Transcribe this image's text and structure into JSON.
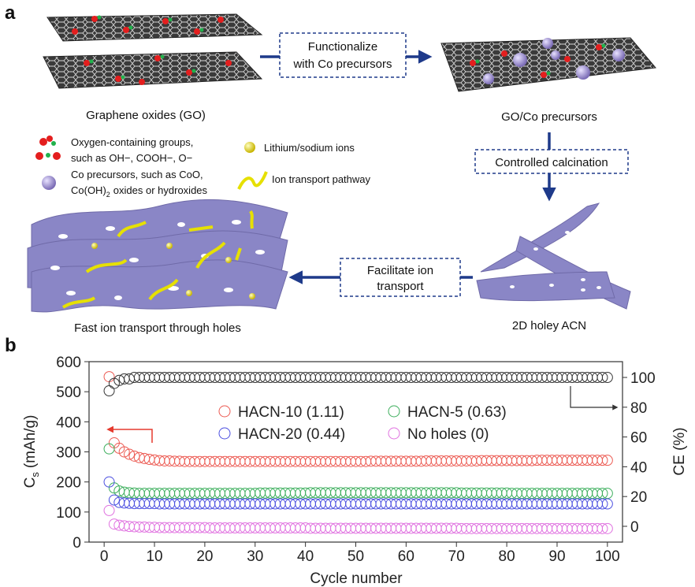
{
  "panels": {
    "a": "a",
    "b": "b"
  },
  "diagram": {
    "functionalize_box": [
      "Functionalize",
      "with Co precursors"
    ],
    "go_label": "Graphene oxides (GO)",
    "go_co_label": "GO/Co precursors",
    "calcination_box": "Controlled calcination",
    "facilitate_box": [
      "Facilitate ion",
      "transport"
    ],
    "fast_label": "Fast ion transport through holes",
    "acn_label": "2D holey ACN",
    "legend": {
      "oxygen": [
        "Oxygen-containing groups,",
        "such as OH−, COOH−, O−"
      ],
      "co": {
        "line1": "Co precursors, such as CoO,",
        "line2": {
          "main": "Co(OH)",
          "sub": "2",
          "rest": "oxides or hydroxides"
        }
      },
      "ions": "Lithium/sodium ions",
      "pathway": "Ion transport pathway"
    }
  },
  "chart_data": {
    "type": "scatter",
    "x_label": "Cycle number",
    "y_label": {
      "main": "C",
      "sub": "s",
      "rest": "(mAh/g)"
    },
    "y2_label": "CE (%)",
    "xlim": [
      -3,
      103
    ],
    "xticks": [
      0,
      10,
      20,
      30,
      40,
      50,
      60,
      70,
      80,
      90,
      100
    ],
    "ylim": [
      0,
      600
    ],
    "yticks": [
      0,
      100,
      200,
      300,
      400,
      500,
      600
    ],
    "y2lim": [
      -10.6,
      110.6
    ],
    "y2ticks": [
      0,
      20,
      40,
      60,
      80,
      100
    ],
    "x": [
      1,
      2,
      3,
      4,
      5,
      6,
      7,
      8,
      9,
      10,
      11,
      12,
      13,
      14,
      15,
      16,
      17,
      18,
      19,
      20,
      21,
      22,
      23,
      24,
      25,
      26,
      27,
      28,
      29,
      30,
      31,
      32,
      33,
      34,
      35,
      36,
      37,
      38,
      39,
      40,
      41,
      42,
      43,
      44,
      45,
      46,
      47,
      48,
      49,
      50,
      51,
      52,
      53,
      54,
      55,
      56,
      57,
      58,
      59,
      60,
      61,
      62,
      63,
      64,
      65,
      66,
      67,
      68,
      69,
      70,
      71,
      72,
      73,
      74,
      75,
      76,
      77,
      78,
      79,
      80,
      81,
      82,
      83,
      84,
      85,
      86,
      87,
      88,
      89,
      90,
      91,
      92,
      93,
      94,
      95,
      96,
      97,
      98,
      99,
      100
    ],
    "series": [
      {
        "name": "HACN-10 (1.11)",
        "color": "#ec5a52",
        "values": [
          550,
          330,
          312,
          300,
          292,
          286,
          281,
          278,
          275,
          273,
          271,
          270,
          270,
          269,
          269,
          268,
          268,
          268,
          268,
          268,
          268,
          268,
          268,
          268,
          268,
          268,
          268,
          268,
          268,
          268,
          268,
          268,
          268,
          268,
          268,
          268,
          268,
          268,
          268,
          268,
          268,
          268,
          268,
          268,
          268,
          268,
          268,
          268,
          268,
          268,
          268,
          268,
          269,
          269,
          269,
          269,
          269,
          269,
          269,
          269,
          269,
          269,
          269,
          270,
          270,
          270,
          270,
          270,
          270,
          270,
          270,
          270,
          270,
          270,
          271,
          271,
          271,
          271,
          271,
          271,
          271,
          271,
          271,
          271,
          271,
          272,
          272,
          272,
          272,
          272,
          272,
          272,
          272,
          272,
          272,
          272,
          272,
          272,
          272,
          272
        ]
      },
      {
        "name": "HACN-5 (0.63)",
        "color": "#3cae5c",
        "values": [
          310,
          180,
          170,
          166,
          164,
          163,
          162,
          162,
          162,
          162,
          162,
          162,
          162,
          162,
          162,
          162,
          162,
          162,
          162,
          162,
          162,
          162,
          162,
          162,
          162,
          162,
          162,
          162,
          162,
          162,
          163,
          163,
          163,
          163,
          163,
          163,
          163,
          163,
          163,
          163,
          164,
          164,
          164,
          164,
          164,
          164,
          164,
          164,
          164,
          164,
          164,
          164,
          164,
          164,
          164,
          164,
          164,
          164,
          164,
          164,
          164,
          164,
          164,
          164,
          164,
          164,
          164,
          164,
          164,
          164,
          163,
          163,
          163,
          163,
          163,
          163,
          163,
          163,
          163,
          163,
          162,
          162,
          162,
          162,
          162,
          162,
          162,
          162,
          162,
          162,
          162,
          162,
          162,
          162,
          162,
          162,
          162,
          162,
          162,
          162
        ]
      },
      {
        "name": "HACN-20 (0.44)",
        "color": "#4b4fe0",
        "values": [
          200,
          140,
          132,
          130,
          129,
          128,
          128,
          128,
          128,
          128,
          127,
          127,
          127,
          127,
          127,
          127,
          127,
          127,
          127,
          127,
          127,
          127,
          127,
          127,
          127,
          127,
          127,
          127,
          127,
          127,
          127,
          127,
          127,
          127,
          127,
          127,
          127,
          127,
          127,
          127,
          127,
          127,
          127,
          127,
          127,
          127,
          127,
          127,
          127,
          127,
          127,
          127,
          127,
          127,
          127,
          127,
          127,
          127,
          127,
          127,
          127,
          127,
          127,
          127,
          127,
          127,
          127,
          127,
          127,
          127,
          127,
          127,
          127,
          127,
          127,
          127,
          127,
          127,
          127,
          127,
          127,
          127,
          127,
          127,
          127,
          127,
          127,
          127,
          127,
          127,
          127,
          127,
          127,
          127,
          127,
          127,
          127,
          127,
          127,
          127
        ]
      },
      {
        "name": "No holes (0)",
        "color": "#e072e0",
        "values": [
          105,
          60,
          56,
          54,
          52,
          51,
          50,
          50,
          49,
          49,
          48,
          48,
          48,
          48,
          48,
          48,
          48,
          48,
          48,
          48,
          47,
          47,
          47,
          47,
          47,
          47,
          47,
          47,
          47,
          47,
          47,
          47,
          47,
          47,
          47,
          47,
          47,
          47,
          47,
          47,
          46,
          46,
          46,
          46,
          46,
          46,
          46,
          46,
          46,
          46,
          46,
          46,
          46,
          46,
          46,
          46,
          46,
          46,
          46,
          46,
          46,
          46,
          46,
          46,
          46,
          46,
          46,
          46,
          46,
          46,
          45,
          45,
          45,
          45,
          45,
          45,
          45,
          45,
          45,
          45,
          45,
          45,
          45,
          45,
          45,
          45,
          45,
          45,
          45,
          45,
          45,
          45,
          45,
          45,
          45,
          45,
          45,
          45,
          45,
          45
        ]
      },
      {
        "color": "#333333",
        "axis": "y2",
        "values": [
          91,
          96,
          98,
          99,
          99,
          100,
          100,
          100,
          100,
          100,
          100,
          100,
          100,
          100,
          100,
          100,
          100,
          100,
          100,
          100,
          100,
          100,
          100,
          100,
          100,
          100,
          100,
          100,
          100,
          100,
          100,
          100,
          100,
          100,
          100,
          100,
          100,
          100,
          100,
          100,
          100,
          100,
          100,
          100,
          100,
          100,
          100,
          100,
          100,
          100,
          100,
          100,
          100,
          100,
          100,
          100,
          100,
          100,
          100,
          100,
          100,
          100,
          100,
          100,
          100,
          100,
          100,
          100,
          100,
          100,
          100,
          100,
          100,
          100,
          100,
          100,
          100,
          100,
          100,
          100,
          100,
          100,
          100,
          100,
          100,
          100,
          100,
          100,
          100,
          100,
          100,
          100,
          100,
          100,
          100,
          100,
          100,
          100,
          100,
          100
        ]
      }
    ]
  }
}
